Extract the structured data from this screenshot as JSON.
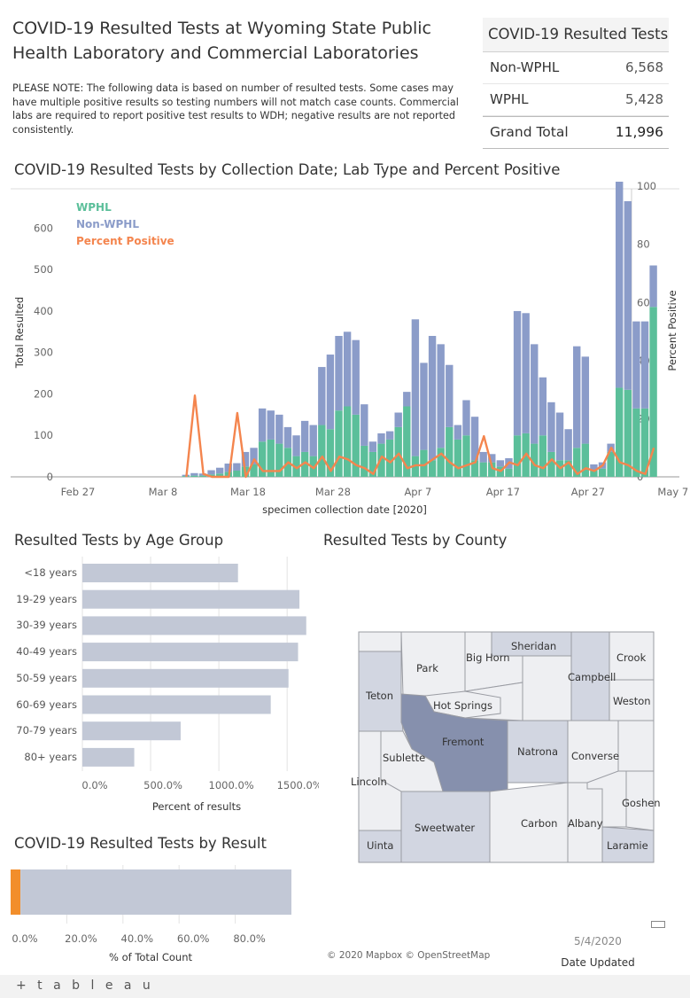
{
  "header": {
    "title": "COVID-19 Resulted Tests at Wyoming State Public Health Laboratory and Commercial Laboratories",
    "note": "PLEASE NOTE: The following data is based on number of resulted tests. Some cases may have multiple positive results so testing numbers will not match case counts. Commercial labs are required to report positive test results to WDH; negative results are not reported consistently."
  },
  "summary": {
    "title": "COVID-19 Resulted Tests",
    "rows": [
      {
        "label": "Non-WPHL",
        "value": "6,568"
      },
      {
        "label": "WPHL",
        "value": "5,428"
      }
    ],
    "total": {
      "label": "Grand Total",
      "value": "11,996"
    }
  },
  "colors": {
    "wphl": "#5bbf9a",
    "non_wphl": "#8b9cc9",
    "percent": "#f4854e",
    "age_bar": "#c2c8d6",
    "result_bar": "#c2c8d6",
    "result_orange": "#f28e2b",
    "fremont": "#8690ad",
    "county_medium": "#d2d6e1",
    "county_light": "#eeeff2"
  },
  "daily_chart": {
    "title": "COVID-19 Resulted Tests by Collection Date; Lab Type and Percent Positive",
    "chart_data": {
      "type": "bar",
      "stacked": true,
      "x_label": "specimen collection date [2020]",
      "y_label": "Total Resulted",
      "y2_label": "Percent Positive",
      "x_ticks": [
        "Feb 27",
        "Mar 8",
        "Mar 18",
        "Mar 28",
        "Apr 7",
        "Apr 17",
        "Apr 27",
        "May 7"
      ],
      "y_ticks": [
        "0",
        "100",
        "200",
        "300",
        "400",
        "500",
        "600"
      ],
      "y2_ticks": [
        "0",
        "20",
        "40",
        "60",
        "80",
        "100"
      ],
      "ylim": [
        0,
        680
      ],
      "y2lim": [
        0,
        97
      ],
      "legend": [
        "WPHL",
        "Non-WPHL",
        "Percent Positive"
      ],
      "x_start": "2020-02-27",
      "categories": [
        "Feb 27",
        "Feb 28",
        "Feb 29",
        "Mar 1",
        "Mar 2",
        "Mar 3",
        "Mar 4",
        "Mar 5",
        "Mar 6",
        "Mar 7",
        "Mar 8",
        "Mar 9",
        "Mar 10",
        "Mar 11",
        "Mar 12",
        "Mar 13",
        "Mar 14",
        "Mar 15",
        "Mar 16",
        "Mar 17",
        "Mar 18",
        "Mar 19",
        "Mar 20",
        "Mar 21",
        "Mar 22",
        "Mar 23",
        "Mar 24",
        "Mar 25",
        "Mar 26",
        "Mar 27",
        "Mar 28",
        "Mar 29",
        "Mar 30",
        "Mar 31",
        "Apr 1",
        "Apr 2",
        "Apr 3",
        "Apr 4",
        "Apr 5",
        "Apr 6",
        "Apr 7",
        "Apr 8",
        "Apr 9",
        "Apr 10",
        "Apr 11",
        "Apr 12",
        "Apr 13",
        "Apr 14",
        "Apr 15",
        "Apr 16",
        "Apr 17",
        "Apr 18",
        "Apr 19",
        "Apr 20",
        "Apr 21",
        "Apr 22",
        "Apr 23",
        "Apr 24",
        "Apr 25",
        "Apr 26",
        "Apr 27",
        "Apr 28",
        "Apr 29",
        "Apr 30",
        "May 1",
        "May 2",
        "May 3"
      ],
      "series": [
        {
          "name": "WPHL",
          "values": [
            0,
            0,
            0,
            0,
            0,
            0,
            0,
            0,
            0,
            0,
            0,
            2,
            3,
            3,
            6,
            8,
            12,
            15,
            25,
            30,
            85,
            90,
            80,
            70,
            50,
            60,
            50,
            125,
            115,
            160,
            170,
            150,
            75,
            60,
            80,
            90,
            120,
            170,
            50,
            65,
            40,
            70,
            120,
            90,
            100,
            40,
            35,
            35,
            25,
            20,
            100,
            105,
            80,
            100,
            60,
            40,
            40,
            70,
            80,
            15,
            20,
            60,
            215,
            210,
            165,
            165,
            410
          ]
        },
        {
          "name": "Non-WPHL",
          "values": [
            0,
            0,
            0,
            0,
            0,
            0,
            0,
            0,
            0,
            0,
            0,
            3,
            6,
            5,
            10,
            14,
            20,
            18,
            35,
            40,
            80,
            70,
            70,
            50,
            50,
            75,
            75,
            140,
            180,
            180,
            180,
            180,
            100,
            25,
            25,
            20,
            35,
            35,
            330,
            210,
            300,
            250,
            150,
            35,
            85,
            105,
            25,
            20,
            15,
            25,
            300,
            290,
            240,
            140,
            120,
            115,
            75,
            245,
            210,
            15,
            15,
            20,
            565,
            455,
            210,
            210,
            100
          ]
        },
        {
          "name": "Percent Positive",
          "values": [
            0,
            0,
            0,
            0,
            0,
            0,
            0,
            0,
            0,
            0,
            0,
            0,
            0,
            0,
            0,
            0,
            0,
            0,
            0,
            0,
            0,
            0,
            0,
            0,
            0,
            0,
            0,
            0,
            0,
            0,
            0,
            0,
            0,
            0,
            0,
            0,
            0,
            0,
            0,
            0,
            0,
            0,
            0,
            0,
            0,
            0,
            0,
            0,
            0,
            0,
            0,
            0,
            0,
            0,
            0,
            0,
            0,
            0,
            0,
            0,
            0,
            0,
            0,
            0,
            0,
            0,
            0
          ]
        }
      ],
      "percent_positive": [
        null,
        null,
        null,
        null,
        null,
        null,
        null,
        null,
        null,
        null,
        null,
        0,
        28,
        1,
        0,
        0,
        0,
        22,
        0,
        6,
        2,
        2,
        2,
        5,
        3,
        5,
        3,
        7,
        2,
        7,
        6,
        4,
        3,
        1,
        7,
        5,
        8,
        3,
        4,
        4,
        6,
        8,
        5,
        3,
        4,
        5,
        14,
        3,
        2,
        5,
        4,
        8,
        4,
        3,
        6,
        3,
        5,
        1,
        3,
        2,
        4,
        10,
        5,
        4,
        2,
        1,
        10
      ]
    }
  },
  "age_chart": {
    "title": "Resulted Tests by Age Group",
    "chart_data": {
      "type": "bar",
      "orientation": "horizontal",
      "categories": [
        "<18 years",
        "19-29 years",
        "30-39 years",
        "40-49 years",
        "50-59 years",
        "60-69 years",
        "70-79 years",
        "80+ years"
      ],
      "values": [
        1140,
        1590,
        1640,
        1580,
        1510,
        1380,
        720,
        380
      ],
      "xlabel": "Percent of results",
      "x_ticks": [
        "0.0%",
        "500.0%",
        "1000.0%",
        "1500.0%"
      ],
      "xlim": [
        0,
        1700
      ]
    }
  },
  "result_chart": {
    "title": "COVID-19 Resulted Tests by Result",
    "chart_data": {
      "type": "bar",
      "stacked": true,
      "orientation": "horizontal",
      "segments": [
        {
          "value": 3.5
        },
        {
          "value": 96.5
        }
      ],
      "xlabel": "% of Total Count",
      "x_ticks": [
        "0.0%",
        "20.0%",
        "40.0%",
        "60.0%",
        "80.0%"
      ],
      "xlim": [
        0,
        100
      ]
    }
  },
  "county_map": {
    "title": "Resulted Tests by County",
    "counties": [
      "Sheridan",
      "Big Horn",
      "Park",
      "Crook",
      "Campbell",
      "Weston",
      "Teton",
      "Hot Springs",
      "Fremont",
      "Natrona",
      "Converse",
      "Sublette",
      "Lincoln",
      "Goshen",
      "Sweetwater",
      "Carbon",
      "Albany",
      "Uinta",
      "Laramie"
    ],
    "attribution": "© 2020 Mapbox © OpenStreetMap"
  },
  "date_updated": {
    "value": "5/4/2020",
    "label": "Date Updated"
  },
  "footer": {
    "logo": "+ t a b l e a u"
  }
}
